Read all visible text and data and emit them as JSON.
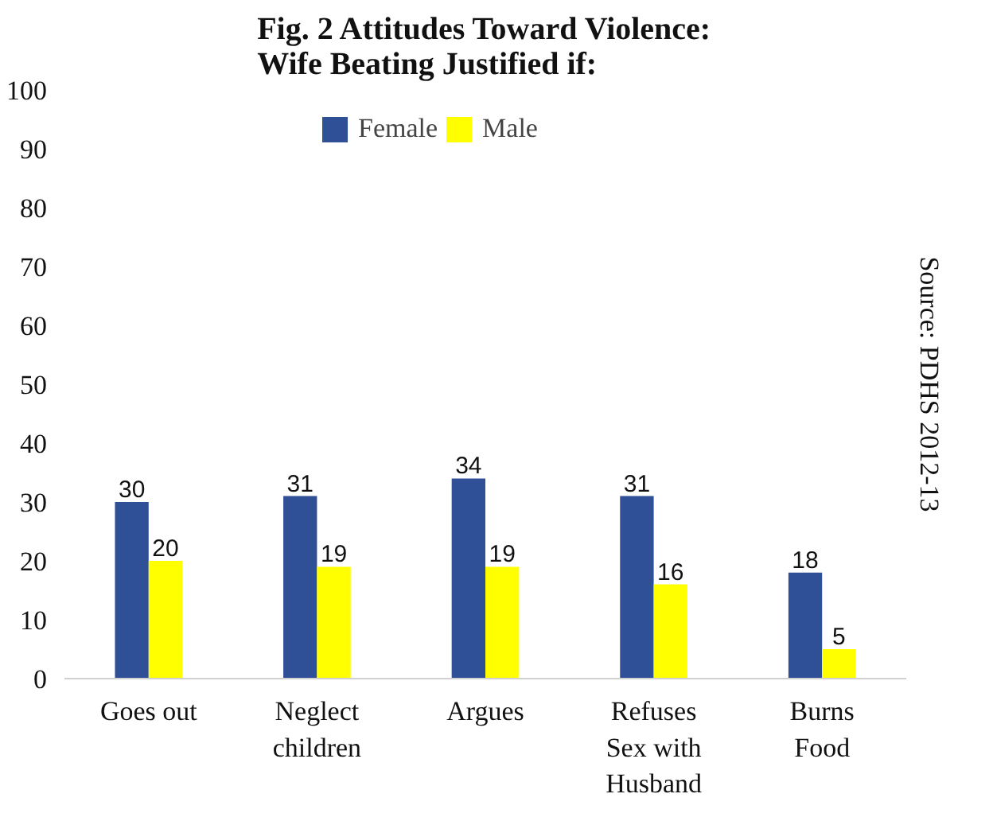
{
  "chart_data": {
    "type": "bar",
    "title": "Fig. 2 Attitudes Toward Violence:\nWife Beating Justified if:",
    "categories": [
      "Goes out",
      "Neglect\nchildren",
      "Argues",
      "Refuses\nSex with\nHusband",
      "Burns\nFood"
    ],
    "series": [
      {
        "name": "Female",
        "color": "#2f4f97",
        "values": [
          30,
          31,
          34,
          31,
          18
        ]
      },
      {
        "name": "Male",
        "color": "#ffff00",
        "values": [
          20,
          19,
          19,
          16,
          5
        ]
      }
    ],
    "ylim": [
      0,
      100
    ],
    "yticks": [
      0,
      10,
      20,
      30,
      40,
      50,
      60,
      70,
      80,
      90,
      100
    ],
    "data_labels": true,
    "legend": "top",
    "grid": false,
    "annotations": [
      "Source: PDHS 2012-13"
    ]
  }
}
